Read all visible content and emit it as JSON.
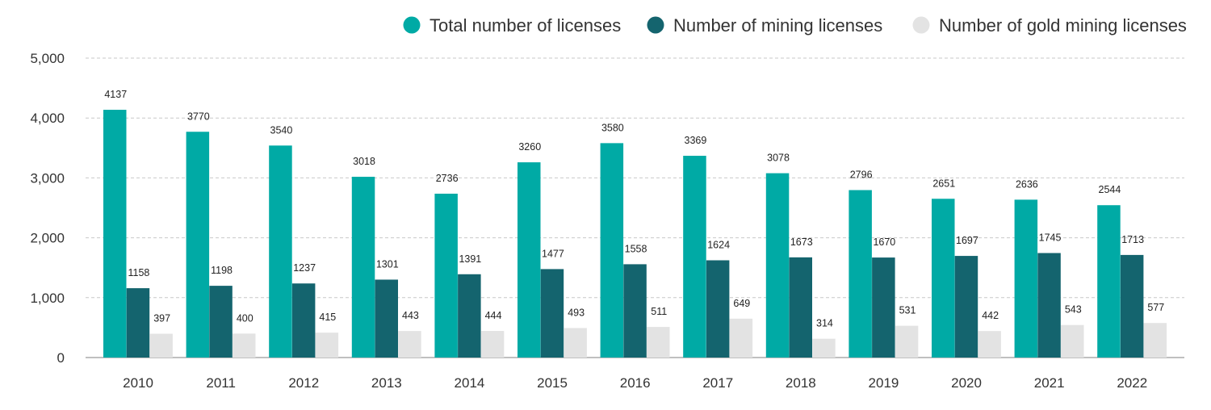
{
  "chart_data": {
    "type": "bar",
    "categories": [
      "2010",
      "2011",
      "2012",
      "2013",
      "2014",
      "2015",
      "2016",
      "2017",
      "2018",
      "2019",
      "2020",
      "2021",
      "2022"
    ],
    "series": [
      {
        "name": "Total number of licenses",
        "color": "#00aaa5",
        "values": [
          4137,
          3770,
          3540,
          3018,
          2736,
          3260,
          3580,
          3369,
          3078,
          2796,
          2651,
          2636,
          2544
        ]
      },
      {
        "name": "Number of mining licenses",
        "color": "#14646e",
        "values": [
          1158,
          1198,
          1237,
          1301,
          1391,
          1477,
          1558,
          1624,
          1673,
          1670,
          1697,
          1745,
          1713
        ]
      },
      {
        "name": "Number of gold mining licenses",
        "color": "#e3e3e3",
        "values": [
          397,
          400,
          415,
          443,
          444,
          493,
          511,
          649,
          314,
          531,
          442,
          543,
          577
        ]
      }
    ],
    "ylim": [
      0,
      5000
    ],
    "yticks": [
      0,
      1000,
      2000,
      3000,
      4000,
      5000
    ],
    "ytick_labels": [
      "0",
      "1,000",
      "2,000",
      "3,000",
      "4,000",
      "5,000"
    ],
    "grid": true,
    "legend_position": "top-right",
    "title": "",
    "xlabel": "",
    "ylabel": ""
  }
}
